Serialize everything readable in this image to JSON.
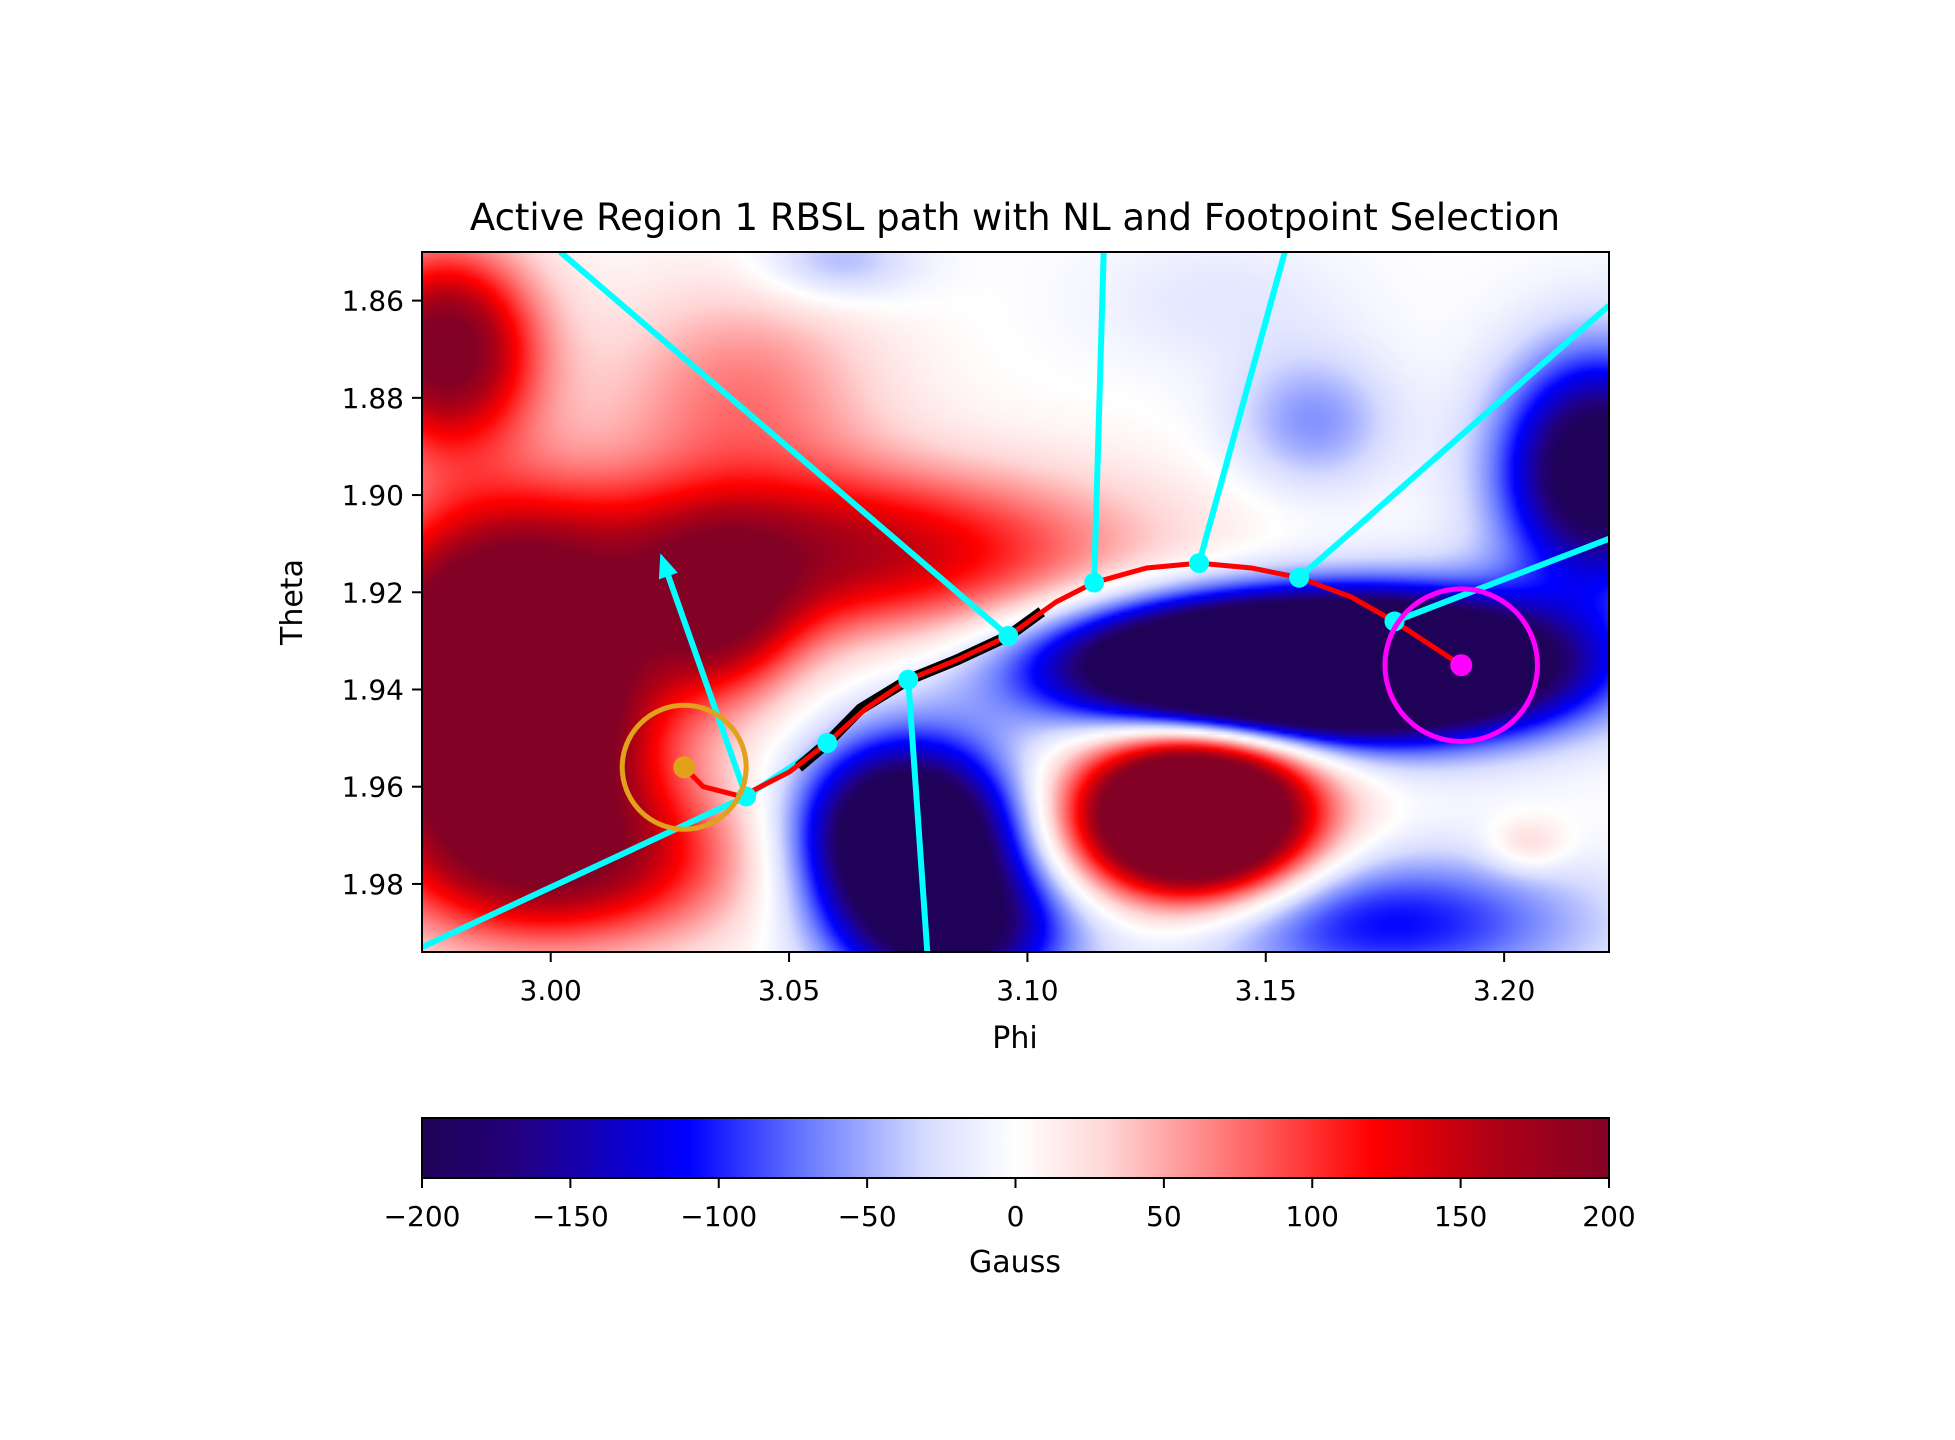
{
  "chart_data": {
    "type": "heatmap",
    "title": "Active Region 1 RBSL path with NL and Footpoint Selection",
    "xlabel": "Phi",
    "ylabel": "Theta",
    "xlim": [
      2.973,
      3.222
    ],
    "ylim": [
      1.994,
      1.85
    ],
    "y_inverted": true,
    "x_ticks": [
      3.0,
      3.05,
      3.1,
      3.15,
      3.2
    ],
    "x_tick_labels": [
      "3.00",
      "3.05",
      "3.10",
      "3.15",
      "3.20"
    ],
    "y_ticks": [
      1.86,
      1.88,
      1.9,
      1.92,
      1.94,
      1.96,
      1.98
    ],
    "y_tick_labels": [
      "1.86",
      "1.88",
      "1.90",
      "1.92",
      "1.94",
      "1.96",
      "1.98"
    ],
    "grid": false,
    "colormap": "seismic",
    "colorbar": {
      "label": "Gauss",
      "range": [
        -200,
        200
      ],
      "ticks": [
        -200,
        -150,
        -100,
        -50,
        0,
        50,
        100,
        150,
        200
      ],
      "tick_labels": [
        "−200",
        "−150",
        "−100",
        "−50",
        "0",
        "50",
        "100",
        "150",
        "200"
      ],
      "stops": [
        {
          "v": -200,
          "c": "#1f0257"
        },
        {
          "v": -170,
          "c": "#23007a"
        },
        {
          "v": -110,
          "c": "#0000ff"
        },
        {
          "v": -70,
          "c": "#6a7cff"
        },
        {
          "v": -30,
          "c": "#d7dcff"
        },
        {
          "v": 0,
          "c": "#ffffff"
        },
        {
          "v": 30,
          "c": "#ffd7d7"
        },
        {
          "v": 70,
          "c": "#ff7a7a"
        },
        {
          "v": 120,
          "c": "#ff0000"
        },
        {
          "v": 160,
          "c": "#b00015"
        },
        {
          "v": 200,
          "c": "#830125"
        }
      ]
    },
    "field_blobs": [
      {
        "phi": 2.99,
        "theta": 1.94,
        "sx": 0.02,
        "sy": 0.022,
        "amp": 400
      },
      {
        "phi": 2.978,
        "theta": 1.87,
        "sx": 0.013,
        "sy": 0.014,
        "amp": 220
      },
      {
        "phi": 3.035,
        "theta": 1.925,
        "sx": 0.012,
        "sy": 0.012,
        "amp": 150
      },
      {
        "phi": 3.005,
        "theta": 1.975,
        "sx": 0.025,
        "sy": 0.012,
        "amp": 150
      },
      {
        "phi": 3.06,
        "theta": 1.912,
        "sx": 0.04,
        "sy": 0.012,
        "amp": 160
      },
      {
        "phi": 3.04,
        "theta": 1.88,
        "sx": 0.02,
        "sy": 0.016,
        "amp": 70
      },
      {
        "phi": 3.135,
        "theta": 1.966,
        "sx": 0.016,
        "sy": 0.011,
        "amp": 450
      },
      {
        "phi": 3.205,
        "theta": 1.972,
        "sx": 0.006,
        "sy": 0.004,
        "amp": 40
      },
      {
        "phi": 3.15,
        "theta": 1.935,
        "sx": 0.03,
        "sy": 0.009,
        "amp": -450
      },
      {
        "phi": 3.185,
        "theta": 1.935,
        "sx": 0.025,
        "sy": 0.01,
        "amp": -220
      },
      {
        "phi": 3.22,
        "theta": 1.895,
        "sx": 0.014,
        "sy": 0.016,
        "amp": -250
      },
      {
        "phi": 3.075,
        "theta": 1.97,
        "sx": 0.015,
        "sy": 0.013,
        "amp": -320
      },
      {
        "phi": 3.085,
        "theta": 1.99,
        "sx": 0.016,
        "sy": 0.01,
        "amp": -180
      },
      {
        "phi": 3.175,
        "theta": 1.988,
        "sx": 0.03,
        "sy": 0.01,
        "amp": -110
      },
      {
        "phi": 3.16,
        "theta": 1.885,
        "sx": 0.012,
        "sy": 0.01,
        "amp": -60
      },
      {
        "phi": 3.06,
        "theta": 1.852,
        "sx": 0.012,
        "sy": 0.006,
        "amp": -50
      },
      {
        "phi": 3.14,
        "theta": 1.86,
        "sx": 0.02,
        "sy": 0.01,
        "amp": -20
      }
    ],
    "neutral_line": {
      "color": "#000000",
      "points": [
        [
          3.052,
          1.956
        ],
        [
          3.058,
          1.951
        ],
        [
          3.065,
          1.944
        ],
        [
          3.075,
          1.938
        ],
        [
          3.085,
          1.934
        ],
        [
          3.096,
          1.929
        ],
        [
          3.103,
          1.924
        ]
      ]
    },
    "rbsl_path": {
      "color": "#ff0000",
      "points": [
        [
          3.028,
          1.956
        ],
        [
          3.032,
          1.96
        ],
        [
          3.04,
          1.962
        ],
        [
          3.05,
          1.957
        ],
        [
          3.058,
          1.951
        ],
        [
          3.066,
          1.944
        ],
        [
          3.075,
          1.938
        ],
        [
          3.085,
          1.934
        ],
        [
          3.096,
          1.929
        ],
        [
          3.106,
          1.922
        ],
        [
          3.114,
          1.918
        ],
        [
          3.125,
          1.915
        ],
        [
          3.136,
          1.914
        ],
        [
          3.147,
          1.915
        ],
        [
          3.157,
          1.917
        ],
        [
          3.168,
          1.921
        ],
        [
          3.177,
          1.926
        ],
        [
          3.191,
          1.935
        ]
      ]
    },
    "sample_points": {
      "color": "#00ffff",
      "points": [
        [
          3.041,
          1.962
        ],
        [
          3.058,
          1.951
        ],
        [
          3.075,
          1.938
        ],
        [
          3.096,
          1.929
        ],
        [
          3.114,
          1.918
        ],
        [
          3.136,
          1.914
        ],
        [
          3.157,
          1.917
        ],
        [
          3.177,
          1.926
        ]
      ]
    },
    "normal_lines": {
      "color": "#00ffff",
      "segments": [
        [
          [
            2.973,
            1.993
          ],
          [
            3.041,
            1.962
          ]
        ],
        [
          [
            3.041,
            1.962
          ],
          [
            3.058,
            1.951
          ]
        ],
        [
          [
            3.075,
            1.938
          ],
          [
            3.079,
            1.994
          ]
        ],
        [
          [
            3.096,
            1.929
          ],
          [
            3.002,
            1.85
          ]
        ],
        [
          [
            3.114,
            1.918
          ],
          [
            3.116,
            1.85
          ]
        ],
        [
          [
            3.136,
            1.914
          ],
          [
            3.154,
            1.85
          ]
        ],
        [
          [
            3.157,
            1.917
          ],
          [
            3.222,
            1.861
          ]
        ],
        [
          [
            3.177,
            1.926
          ],
          [
            3.222,
            1.909
          ]
        ]
      ]
    },
    "arrow": {
      "color": "#00ffff",
      "from": [
        3.041,
        1.962
      ],
      "to": [
        3.023,
        1.912
      ]
    },
    "footpoints": [
      {
        "phi": 3.028,
        "theta": 1.956,
        "radius": 0.013,
        "color": "#e1a11a"
      },
      {
        "phi": 3.191,
        "theta": 1.935,
        "radius": 0.016,
        "color": "#ff00ff"
      }
    ]
  }
}
